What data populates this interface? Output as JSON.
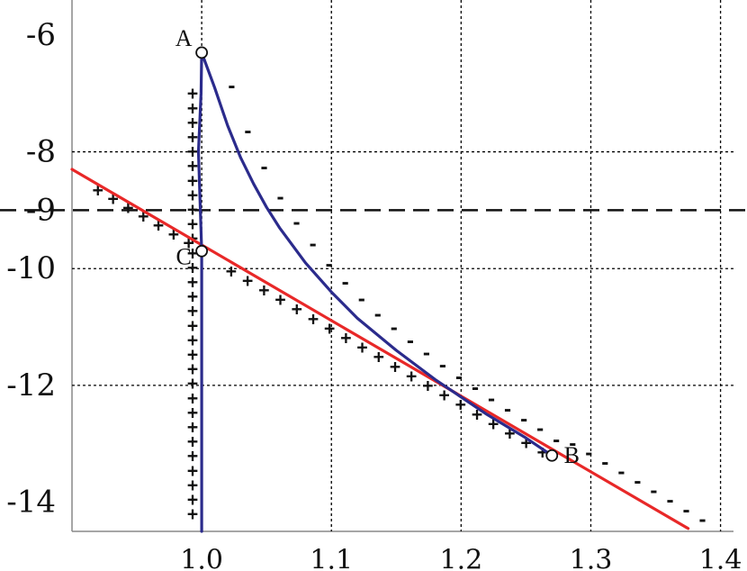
{
  "chart_data": {
    "type": "line",
    "title": "",
    "xlabel": "",
    "ylabel": "",
    "xlim": [
      0.9,
      1.41
    ],
    "ylim": [
      -14.5,
      -5.4
    ],
    "x_ticks": [
      {
        "value": 1.0,
        "label": "1.0"
      },
      {
        "value": 1.1,
        "label": "1.1"
      },
      {
        "value": 1.2,
        "label": "1.2"
      },
      {
        "value": 1.3,
        "label": "1.3"
      },
      {
        "value": 1.4,
        "label": "1.4"
      }
    ],
    "y_ticks": [
      {
        "value": -6,
        "label": "-6"
      },
      {
        "value": -8,
        "label": "-8"
      },
      {
        "value": -9,
        "label": "-9"
      },
      {
        "value": -10,
        "label": "-10"
      },
      {
        "value": -12,
        "label": "-12"
      },
      {
        "value": -14,
        "label": "-14"
      }
    ],
    "vertical_gridlines": [
      1.0,
      1.1,
      1.2,
      1.3,
      1.4
    ],
    "horizontal_gridlines": [
      -8,
      -10,
      -12
    ],
    "dashed_reference_line": {
      "y": -9
    },
    "series": [
      {
        "color": "#e82828",
        "x": [
          0.9,
          1.375
        ],
        "y": [
          -8.3,
          -14.45
        ]
      },
      {
        "color": "#2b2b8c",
        "x": [
          1.0,
          1.0,
          1.0,
          1.0,
          0.9975,
          0.9995,
          1.0,
          1.01,
          1.02,
          1.03,
          1.04,
          1.05,
          1.06,
          1.08,
          1.1,
          1.12,
          1.15,
          1.18,
          1.2,
          1.22,
          1.25,
          1.27
        ],
        "y": [
          -14.5,
          -13.0,
          -11.0,
          -9.7,
          -8.0,
          -7.0,
          -6.3,
          -6.9,
          -7.55,
          -8.1,
          -8.55,
          -8.95,
          -9.3,
          -9.9,
          -10.4,
          -10.85,
          -11.4,
          -11.9,
          -12.2,
          -12.5,
          -12.9,
          -13.2
        ]
      }
    ],
    "points": [
      {
        "label": "A",
        "x": 1.0,
        "y": -6.3
      },
      {
        "label": "B",
        "x": 1.27,
        "y": -13.2
      },
      {
        "label": "C",
        "x": 1.0,
        "y": -9.7
      }
    ],
    "sign_annotations": {
      "plus": "+",
      "minus": "-",
      "plus_along_vertical": {
        "x": 0.993,
        "y_from": -7.0,
        "y_to": -14.2,
        "count": 30
      },
      "plus_along_red_above": {
        "x_from": 0.92,
        "x_to": 0.99,
        "count": 7
      },
      "plus_along_red_below": {
        "x_from": 1.02,
        "x_to": 1.26,
        "count": 20
      },
      "minus_along_blue": {
        "x_from": 1.012,
        "x_to": 1.375,
        "count": 30
      }
    }
  }
}
